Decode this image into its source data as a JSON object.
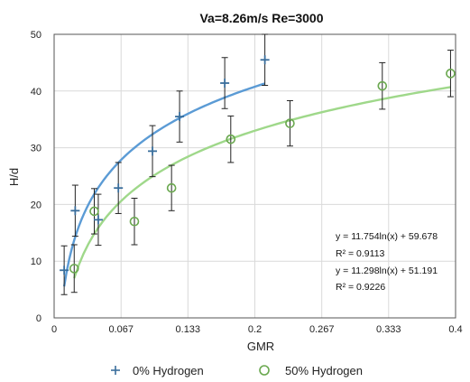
{
  "chart_data": {
    "type": "scatter",
    "title": "Va=8.26m/s Re=3000",
    "xlabel": "GMR",
    "ylabel": "H/d",
    "xlim": [
      0,
      0.4
    ],
    "ylim": [
      0,
      50
    ],
    "x_ticks": [
      {
        "value": 0,
        "label": "0"
      },
      {
        "value": 0.0667,
        "label": "0.067"
      },
      {
        "value": 0.1333,
        "label": "0.133"
      },
      {
        "value": 0.2,
        "label": "0.2"
      },
      {
        "value": 0.2667,
        "label": "0.267"
      },
      {
        "value": 0.3333,
        "label": "0.333"
      },
      {
        "value": 0.4,
        "label": "0.4"
      }
    ],
    "y_ticks": [
      {
        "value": 0,
        "label": "0"
      },
      {
        "value": 10,
        "label": "10"
      },
      {
        "value": 20,
        "label": "20"
      },
      {
        "value": 30,
        "label": "30"
      },
      {
        "value": 40,
        "label": "40"
      },
      {
        "value": 50,
        "label": "50"
      }
    ],
    "grid": true,
    "legend_position": "bottom",
    "series": [
      {
        "name": "0% Hydrogen",
        "marker": "plus",
        "marker_color": "#3a6e9c",
        "trend_color": "#5b9bd5",
        "points": [
          {
            "x": 0.01,
            "y": 8.4,
            "err": 4.3
          },
          {
            "x": 0.021,
            "y": 18.9,
            "err": 4.5
          },
          {
            "x": 0.044,
            "y": 17.3,
            "err": 4.5
          },
          {
            "x": 0.064,
            "y": 22.9,
            "err": 4.5
          },
          {
            "x": 0.098,
            "y": 29.4,
            "err": 4.5
          },
          {
            "x": 0.125,
            "y": 35.5,
            "err": 4.5
          },
          {
            "x": 0.17,
            "y": 41.4,
            "err": 4.5
          },
          {
            "x": 0.21,
            "y": 45.5,
            "err": 4.5
          }
        ],
        "trendline": {
          "a": 11.754,
          "b": 59.678,
          "x_range": [
            0.01,
            0.21
          ]
        },
        "equation": "y = 11.754ln(x) + 59.678",
        "r2": "R² = 0.9113"
      },
      {
        "name": "50% Hydrogen",
        "marker": "circle",
        "marker_color": "#6aa84f",
        "trend_color": "#9fd88a",
        "points": [
          {
            "x": 0.02,
            "y": 8.7,
            "err": 4.2
          },
          {
            "x": 0.04,
            "y": 18.8,
            "err": 4.0
          },
          {
            "x": 0.08,
            "y": 17.0,
            "err": 4.1
          },
          {
            "x": 0.117,
            "y": 22.9,
            "err": 4.0
          },
          {
            "x": 0.176,
            "y": 31.5,
            "err": 4.1
          },
          {
            "x": 0.235,
            "y": 34.3,
            "err": 4.0
          },
          {
            "x": 0.327,
            "y": 40.9,
            "err": 4.1
          },
          {
            "x": 0.395,
            "y": 43.1,
            "err": 4.1
          }
        ],
        "trendline": {
          "a": 11.298,
          "b": 51.191,
          "x_range": [
            0.02,
            0.395
          ]
        },
        "equation": "y = 11.298ln(x) + 51.191",
        "r2": "R² = 0.9226"
      }
    ]
  }
}
